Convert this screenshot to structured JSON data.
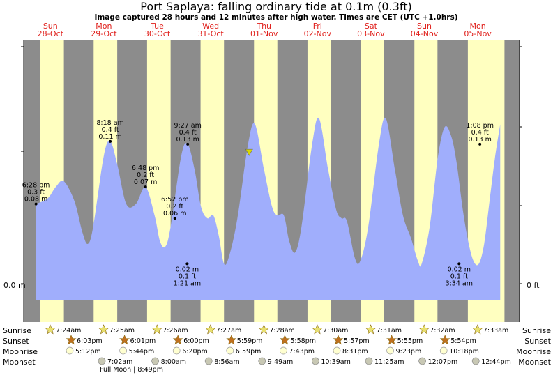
{
  "colors": {
    "night": "#8c8c8c",
    "day": "#ffffc0",
    "tide_fill": "#a0aefc",
    "day_text": "#e0201c",
    "sunrise_star": "#e8e070",
    "sunset_star": "#c0701e",
    "moonrise": "#ffffd0",
    "moonset": "#c8c8b4",
    "marker": "#d8d800"
  },
  "header": {
    "title": "Port Saplaya: falling  ordinary tide at 0.1m (0.3ft)",
    "subtitle": "Image captured 28 hours and 12 minutes after high water. Times are CET (UTC +1.0hrs)"
  },
  "days": [
    {
      "weekday": "Sun",
      "date": "28-Oct"
    },
    {
      "weekday": "Mon",
      "date": "29-Oct"
    },
    {
      "weekday": "Tue",
      "date": "30-Oct"
    },
    {
      "weekday": "Wed",
      "date": "31-Oct"
    },
    {
      "weekday": "Thu",
      "date": "01-Nov"
    },
    {
      "weekday": "Fri",
      "date": "02-Nov"
    },
    {
      "weekday": "Sat",
      "date": "03-Nov"
    },
    {
      "weekday": "Sun",
      "date": "04-Nov"
    },
    {
      "weekday": "Mon",
      "date": "05-Nov"
    }
  ],
  "chart_data": {
    "type": "area",
    "title": "Port Saplaya: falling  ordinary tide at 0.1m (0.3ft)",
    "x_range_days": [
      0,
      9
    ],
    "ylim": [
      -0.05,
      0.85
    ],
    "y_axis_left": {
      "label": "0.0 m",
      "value": 0
    },
    "y_axis_right": {
      "label": "0 ft",
      "value": 0
    },
    "daylight": [
      {
        "day": 0,
        "sunrise_h": 7.4,
        "sunset_h": 18.05
      },
      {
        "day": 1,
        "sunrise_h": 7.42,
        "sunset_h": 18.02
      },
      {
        "day": 2,
        "sunrise_h": 7.43,
        "sunset_h": 18.0
      },
      {
        "day": 3,
        "sunrise_h": 7.45,
        "sunset_h": 17.98
      },
      {
        "day": 4,
        "sunrise_h": 7.47,
        "sunset_h": 17.97
      },
      {
        "day": 5,
        "sunrise_h": 7.5,
        "sunset_h": 17.95
      },
      {
        "day": 6,
        "sunrise_h": 7.52,
        "sunset_h": 17.92
      },
      {
        "day": 7,
        "sunrise_h": 7.53,
        "sunset_h": 17.9
      },
      {
        "day": 8,
        "sunrise_h": 7.55,
        "sunset_h": 24
      }
    ],
    "tide_points": [
      [
        0.23,
        0.28
      ],
      [
        0.45,
        0.3
      ],
      [
        0.6,
        0.34
      ],
      [
        0.75,
        0.36
      ],
      [
        0.95,
        0.29
      ],
      [
        1.1,
        0.18
      ],
      [
        1.2,
        0.14
      ],
      [
        1.3,
        0.2
      ],
      [
        1.5,
        0.45
      ],
      [
        1.62,
        0.5
      ],
      [
        1.75,
        0.42
      ],
      [
        1.92,
        0.28
      ],
      [
        2.1,
        0.28
      ],
      [
        2.28,
        0.34
      ],
      [
        2.45,
        0.24
      ],
      [
        2.55,
        0.15
      ],
      [
        2.65,
        0.13
      ],
      [
        2.75,
        0.2
      ],
      [
        2.95,
        0.45
      ],
      [
        3.07,
        0.49
      ],
      [
        3.2,
        0.4
      ],
      [
        3.32,
        0.27
      ],
      [
        3.44,
        0.23
      ],
      [
        3.55,
        0.24
      ],
      [
        3.65,
        0.17
      ],
      [
        3.75,
        0.07
      ],
      [
        3.85,
        0.1
      ],
      [
        4.0,
        0.23
      ],
      [
        4.2,
        0.49
      ],
      [
        4.33,
        0.56
      ],
      [
        4.5,
        0.4
      ],
      [
        4.65,
        0.27
      ],
      [
        4.75,
        0.24
      ],
      [
        4.87,
        0.24
      ],
      [
        4.97,
        0.15
      ],
      [
        5.08,
        0.11
      ],
      [
        5.2,
        0.2
      ],
      [
        5.4,
        0.49
      ],
      [
        5.53,
        0.58
      ],
      [
        5.7,
        0.4
      ],
      [
        5.85,
        0.26
      ],
      [
        5.95,
        0.23
      ],
      [
        6.05,
        0.22
      ],
      [
        6.2,
        0.09
      ],
      [
        6.3,
        0.08
      ],
      [
        6.45,
        0.2
      ],
      [
        6.65,
        0.49
      ],
      [
        6.78,
        0.58
      ],
      [
        6.95,
        0.4
      ],
      [
        7.1,
        0.24
      ],
      [
        7.25,
        0.16
      ],
      [
        7.38,
        0.08
      ],
      [
        7.45,
        0.07
      ],
      [
        7.6,
        0.2
      ],
      [
        7.75,
        0.44
      ],
      [
        7.88,
        0.55
      ],
      [
        8.0,
        0.52
      ],
      [
        8.1,
        0.43
      ],
      [
        8.22,
        0.26
      ],
      [
        8.32,
        0.15
      ],
      [
        8.42,
        0.08
      ],
      [
        8.52,
        0.07
      ],
      [
        8.62,
        0.14
      ],
      [
        8.72,
        0.29
      ],
      [
        8.82,
        0.44
      ],
      [
        8.92,
        0.56
      ]
    ],
    "annotations": [
      {
        "x": 0.23,
        "y": 0.28,
        "lines": [
          "6:28 pm",
          "0.3 ft",
          "0.08 m"
        ],
        "pos": "above"
      },
      {
        "x": 1.62,
        "y": 0.5,
        "lines": [
          "8:18 am",
          "0.4 ft",
          "0.11 m"
        ],
        "pos": "above"
      },
      {
        "x": 2.28,
        "y": 0.34,
        "lines": [
          "6:48 pm",
          "0.2 ft",
          "0.07 m"
        ],
        "pos": "above"
      },
      {
        "x": 2.83,
        "y": 0.23,
        "lines": [
          "6:52 pm",
          "0.2 ft",
          "0.06 m"
        ],
        "pos": "above"
      },
      {
        "x": 3.07,
        "y": 0.49,
        "lines": [
          "9:27 am",
          "0.4 ft",
          "0.13 m"
        ],
        "pos": "above"
      },
      {
        "x": 3.06,
        "y": 0.07,
        "lines": [
          "0.02 m",
          "0.1 ft",
          "1:21 am"
        ],
        "pos": "below"
      },
      {
        "x": 8.15,
        "y": 0.07,
        "lines": [
          "0.02 m",
          "0.1 ft",
          "3:34 am"
        ],
        "pos": "below"
      },
      {
        "x": 8.54,
        "y": 0.49,
        "lines": [
          "1:08 pm",
          "0.4 ft",
          "0.13 m"
        ],
        "pos": "above"
      }
    ],
    "current": {
      "x": 4.22,
      "y": 0.46
    }
  },
  "events": {
    "labels": {
      "sunrise": "Sunrise",
      "sunset": "Sunset",
      "moonrise": "Moonrise",
      "moonset": "Moonset"
    },
    "sunrise": [
      {
        "day": 0,
        "time": "7:24am"
      },
      {
        "day": 1,
        "time": "7:25am"
      },
      {
        "day": 2,
        "time": "7:26am"
      },
      {
        "day": 3,
        "time": "7:27am"
      },
      {
        "day": 4,
        "time": "7:28am"
      },
      {
        "day": 5,
        "time": "7:30am"
      },
      {
        "day": 6,
        "time": "7:31am"
      },
      {
        "day": 7,
        "time": "7:32am"
      },
      {
        "day": 8,
        "time": "7:33am"
      }
    ],
    "sunset": [
      {
        "day": 0,
        "time": "6:03pm"
      },
      {
        "day": 1,
        "time": "6:01pm"
      },
      {
        "day": 2,
        "time": "6:00pm"
      },
      {
        "day": 3,
        "time": "5:59pm"
      },
      {
        "day": 4,
        "time": "5:58pm"
      },
      {
        "day": 5,
        "time": "5:57pm"
      },
      {
        "day": 6,
        "time": "5:55pm"
      },
      {
        "day": 7,
        "time": "5:54pm"
      }
    ],
    "moonrise": [
      {
        "day": 0,
        "time": "5:12pm"
      },
      {
        "day": 1,
        "time": "5:44pm"
      },
      {
        "day": 2,
        "time": "6:20pm"
      },
      {
        "day": 3,
        "time": "6:59pm"
      },
      {
        "day": 4,
        "time": "7:43pm"
      },
      {
        "day": 5,
        "time": "8:31pm"
      },
      {
        "day": 6,
        "time": "9:23pm"
      },
      {
        "day": 7,
        "time": "10:18pm"
      }
    ],
    "moonset": [
      {
        "day": 0,
        "time": "7:02am"
      },
      {
        "day": 1,
        "time": "8:00am"
      },
      {
        "day": 2,
        "time": "8:56am"
      },
      {
        "day": 3,
        "time": "9:49am"
      },
      {
        "day": 4,
        "time": "10:39am"
      },
      {
        "day": 5,
        "time": "11:25am"
      },
      {
        "day": 6,
        "time": "12:07pm"
      },
      {
        "day": 7,
        "time": "12:44pm"
      }
    ],
    "moon_phase": "Full Moon | 8:49pm"
  }
}
